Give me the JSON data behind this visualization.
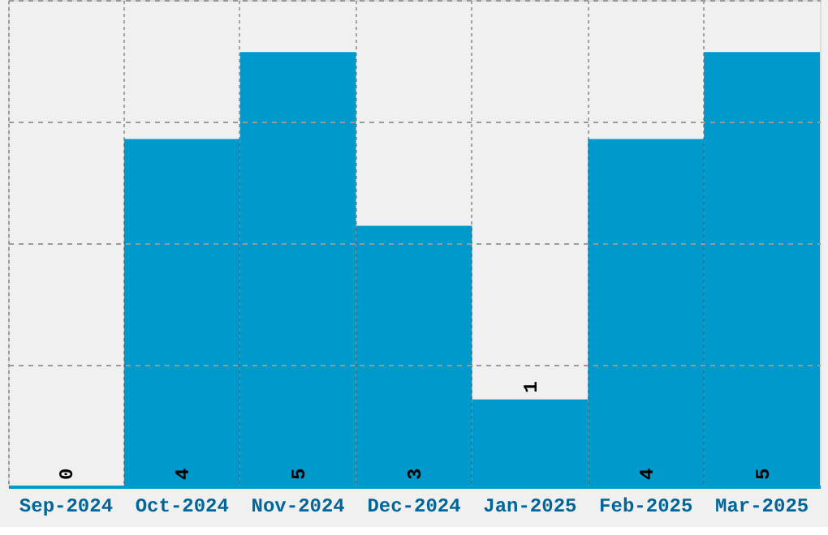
{
  "chart_data": {
    "type": "bar",
    "categories": [
      "Sep-2024",
      "Oct-2024",
      "Nov-2024",
      "Dec-2024",
      "Jan-2025",
      "Feb-2025",
      "Mar-2025"
    ],
    "values": [
      0,
      4,
      5,
      3,
      1,
      4,
      5
    ],
    "color": "#0099cc",
    "ylim": [
      0,
      5.6
    ],
    "yticks": [
      {
        "value": 0,
        "label": null
      },
      {
        "value": 1.4,
        "label": null
      },
      {
        "value": 2.8,
        "label": null
      },
      {
        "value": 4.2,
        "label": null
      },
      {
        "value": 5.6,
        "label": null
      }
    ],
    "tick_labels": "x",
    "grid": true,
    "data_labels": true
  }
}
